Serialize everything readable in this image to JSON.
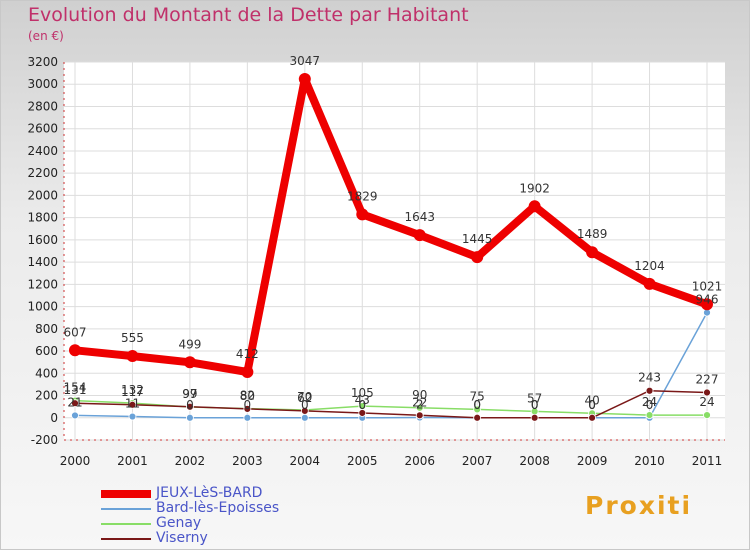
{
  "header": {
    "title": "Evolution du Montant de la Dette par Habitant",
    "unit": "(en €)"
  },
  "brand": {
    "name": "Proxiti"
  },
  "colors": {
    "JEUX-LèS-BARD": "#ee0000",
    "Bard-lès-Epoisses": "#6aa2d8",
    "Genay": "#88dd66",
    "Viserny": "#7a1818",
    "title": "#c0306a",
    "legend_text": "#4a55c8"
  },
  "chart_data": {
    "type": "line",
    "title": "Evolution du Montant de la Dette par Habitant",
    "subtitle": "(en €)",
    "xlabel": "",
    "ylabel": "",
    "x": [
      "2000",
      "2001",
      "2002",
      "2003",
      "2004",
      "2005",
      "2006",
      "2007",
      "2008",
      "2009",
      "2010",
      "2011"
    ],
    "ylim": [
      -200,
      3200
    ],
    "yticks": [
      -200,
      0,
      200,
      400,
      600,
      800,
      1000,
      1200,
      1400,
      1600,
      1800,
      2000,
      2200,
      2400,
      2600,
      2800,
      3000,
      3200
    ],
    "grid": true,
    "legend_position": "bottom-left",
    "series": [
      {
        "name": "JEUX-LèS-BARD",
        "values": [
          607,
          555,
          499,
          412,
          3047,
          1829,
          1643,
          1445,
          1902,
          1489,
          1204,
          1021
        ],
        "labels": [
          "607",
          "555",
          "499",
          "412",
          "3047",
          "1829",
          "1643",
          "1445",
          "1902",
          "1489",
          "1204",
          "1021"
        ]
      },
      {
        "name": "Bard-lès-Epoisses",
        "values": [
          21,
          11,
          0,
          0,
          0,
          0,
          2,
          0,
          0,
          0,
          0,
          946
        ],
        "labels": [
          "21",
          "11",
          "0",
          "0",
          "0",
          "0",
          "2",
          "0",
          "0",
          "0",
          "0",
          "946"
        ]
      },
      {
        "name": "Genay",
        "values": [
          154,
          132,
          97,
          82,
          70,
          105,
          90,
          75,
          57,
          40,
          24,
          24
        ],
        "labels": [
          "154",
          "132",
          "97",
          "82",
          "70",
          "105",
          "90",
          "75",
          "57",
          "40",
          "24",
          "24"
        ]
      },
      {
        "name": "Viserny",
        "values": [
          131,
          117,
          99,
          80,
          62,
          43,
          22,
          0,
          0,
          0,
          243,
          227
        ],
        "labels": [
          "131",
          "117",
          "99",
          "80",
          "62",
          "43",
          "22",
          "0",
          "0",
          "0",
          "243",
          "227"
        ]
      }
    ]
  }
}
